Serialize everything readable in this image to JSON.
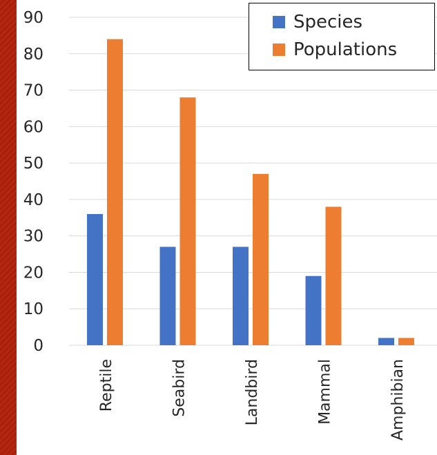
{
  "colors": {
    "background": "#ffffff",
    "left_strip": "#b3260f",
    "gridline": "#d9d9d9",
    "text": "#262626",
    "species": "#4472c4",
    "populations": "#ed7d31"
  },
  "chart_data": {
    "type": "bar",
    "categories": [
      "Reptile",
      "Seabird",
      "Landbird",
      "Mammal",
      "Amphibian"
    ],
    "series": [
      {
        "name": "Species",
        "values": [
          36,
          27,
          27,
          19,
          2
        ]
      },
      {
        "name": "Populations",
        "values": [
          84,
          68,
          47,
          38,
          2
        ]
      }
    ],
    "ylim": [
      0,
      90
    ],
    "y_ticks": [
      0,
      10,
      20,
      30,
      40,
      50,
      60,
      70,
      80,
      90
    ],
    "grid": true,
    "legend_position": "top-right"
  }
}
